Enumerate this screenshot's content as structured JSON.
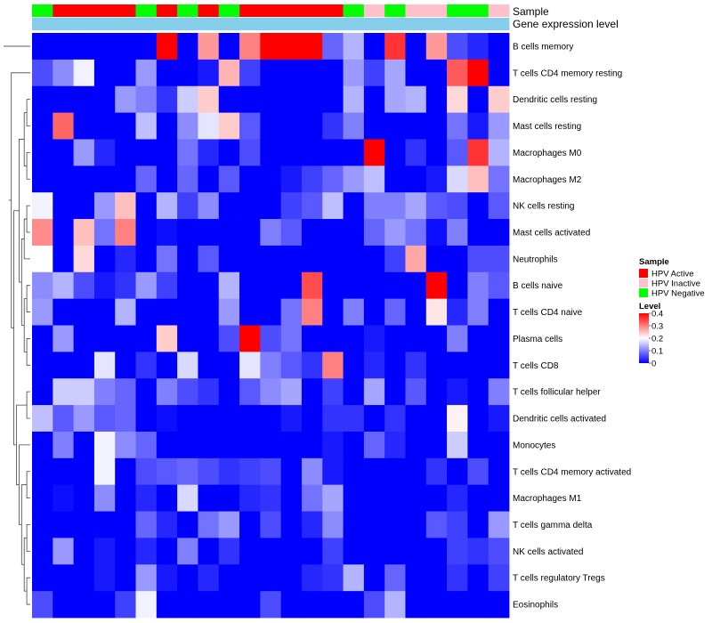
{
  "chart_data": {
    "type": "heatmap",
    "title": "",
    "annotation_labels": {
      "sample": "Sample",
      "gene": "Gene expression level"
    },
    "sample_legend": {
      "title": "Sample",
      "entries": [
        {
          "label": "HPV Active",
          "color": "#ff0000"
        },
        {
          "label": "HPV Inactive",
          "color": "#ffc0cb"
        },
        {
          "label": "HPV Negative",
          "color": "#00ff00"
        }
      ]
    },
    "level_legend": {
      "title": "Level",
      "ticks": [
        "0.4",
        "0.3",
        "0.2",
        "0.1",
        "0"
      ],
      "tick_values": [
        0.4,
        0.3,
        0.2,
        0.1,
        0
      ],
      "min": 0,
      "max": 0.4,
      "colors": [
        "#0000ff",
        "#ffffff",
        "#ff0000"
      ]
    },
    "sample_groups": [
      "Negative",
      "Active",
      "Active",
      "Active",
      "Active",
      "Negative",
      "Active",
      "Negative",
      "Active",
      "Negative",
      "Active",
      "Active",
      "Active",
      "Active",
      "Active",
      "Negative",
      "Inactive",
      "Negative",
      "Inactive",
      "Inactive",
      "Negative",
      "Negative",
      "Inactive"
    ],
    "gene_level_color": "#87ceeb",
    "rows": [
      "B cells memory",
      "T cells CD4 memory resting",
      "Dendritic cells resting",
      "Mast cells resting",
      "Macrophages M0",
      "Macrophages M2",
      "NK cells resting",
      "Mast cells activated",
      "Neutrophils",
      "B cells naive",
      "T cells CD4 naive",
      "Plasma cells",
      "T cells CD8",
      "T cells follicular helper",
      "Dendritic cells activated",
      "Monocytes",
      "T cells CD4 memory activated",
      "Macrophages M1",
      "T cells gamma delta",
      "NK cells activated",
      "T cells regulatory  Tregs",
      "Eosinophils"
    ],
    "values": [
      [
        0.0,
        0.0,
        0.0,
        0.0,
        0.0,
        0.0,
        0.4,
        0.0,
        0.28,
        0.0,
        0.3,
        0.4,
        0.4,
        0.4,
        0.08,
        0.14,
        0.0,
        0.36,
        0.0,
        0.28,
        0.06,
        0.03,
        0.0
      ],
      [
        0.06,
        0.11,
        0.19,
        0.0,
        0.0,
        0.12,
        0.0,
        0.0,
        0.02,
        0.26,
        0.05,
        0.0,
        0.0,
        0.0,
        0.0,
        0.12,
        0.05,
        0.13,
        0.0,
        0.0,
        0.33,
        0.4,
        0.0
      ],
      [
        0.0,
        0.0,
        0.0,
        0.0,
        0.12,
        0.1,
        0.04,
        0.16,
        0.24,
        0.0,
        0.0,
        0.0,
        0.0,
        0.0,
        0.0,
        0.14,
        0.0,
        0.13,
        0.14,
        0.0,
        0.23,
        0.0,
        0.24
      ],
      [
        0.0,
        0.32,
        0.0,
        0.0,
        0.0,
        0.15,
        0.0,
        0.11,
        0.18,
        0.24,
        0.07,
        0.0,
        0.0,
        0.0,
        0.04,
        0.1,
        0.0,
        0.0,
        0.0,
        0.0,
        0.09,
        0.02,
        0.12
      ],
      [
        0.0,
        0.0,
        0.12,
        0.03,
        0.0,
        0.0,
        0.0,
        0.09,
        0.03,
        0.0,
        0.06,
        0.0,
        0.0,
        0.0,
        0.0,
        0.0,
        0.4,
        0.0,
        0.04,
        0.0,
        0.07,
        0.36,
        0.14
      ],
      [
        0.0,
        0.0,
        0.0,
        0.0,
        0.0,
        0.08,
        0.0,
        0.08,
        0.0,
        0.07,
        0.0,
        0.0,
        0.02,
        0.05,
        0.08,
        0.12,
        0.15,
        0.0,
        0.0,
        0.02,
        0.17,
        0.25,
        0.09
      ],
      [
        0.19,
        0.0,
        0.0,
        0.12,
        0.25,
        0.0,
        0.14,
        0.05,
        0.11,
        0.0,
        0.0,
        0.0,
        0.05,
        0.07,
        0.15,
        0.0,
        0.1,
        0.1,
        0.13,
        0.07,
        0.06,
        0.0,
        0.07
      ],
      [
        0.29,
        0.0,
        0.25,
        0.09,
        0.3,
        0.0,
        0.01,
        0.0,
        0.0,
        0.0,
        0.0,
        0.1,
        0.07,
        0.0,
        0.0,
        0.0,
        0.08,
        0.12,
        0.09,
        0.01,
        0.1,
        0.0,
        0.0
      ],
      [
        0.2,
        0.0,
        0.23,
        0.0,
        0.03,
        0.0,
        0.09,
        0.0,
        0.07,
        0.0,
        0.0,
        0.0,
        0.0,
        0.0,
        0.0,
        0.0,
        0.0,
        0.05,
        0.27,
        0.0,
        0.0,
        0.06,
        0.06
      ],
      [
        0.11,
        0.14,
        0.06,
        0.02,
        0.04,
        0.12,
        0.05,
        0.0,
        0.0,
        0.14,
        0.0,
        0.0,
        0.0,
        0.34,
        0.0,
        0.0,
        0.0,
        0.0,
        0.0,
        0.4,
        0.0,
        0.1,
        0.07
      ],
      [
        0.12,
        0.0,
        0.0,
        0.0,
        0.14,
        0.0,
        0.0,
        0.0,
        0.0,
        0.12,
        0.0,
        0.0,
        0.09,
        0.3,
        0.0,
        0.1,
        0.0,
        0.08,
        0.0,
        0.22,
        0.03,
        0.1,
        0.0
      ],
      [
        0.0,
        0.12,
        0.0,
        0.0,
        0.0,
        0.0,
        0.24,
        0.0,
        0.0,
        0.06,
        0.4,
        0.06,
        0.09,
        0.0,
        0.0,
        0.0,
        0.02,
        0.0,
        0.0,
        0.0,
        0.1,
        0.0,
        0.0
      ],
      [
        0.0,
        0.0,
        0.0,
        0.18,
        0.0,
        0.04,
        0.0,
        0.17,
        0.0,
        0.0,
        0.18,
        0.1,
        0.07,
        0.04,
        0.3,
        0.0,
        0.03,
        0.0,
        0.04,
        0.0,
        0.0,
        0.0,
        0.0
      ],
      [
        0.0,
        0.16,
        0.16,
        0.1,
        0.08,
        0.0,
        0.1,
        0.06,
        0.04,
        0.0,
        0.07,
        0.11,
        0.13,
        0.0,
        0.05,
        0.0,
        0.13,
        0.0,
        0.07,
        0.0,
        0.02,
        0.0,
        0.1
      ],
      [
        0.15,
        0.07,
        0.12,
        0.07,
        0.08,
        0.0,
        0.01,
        0.0,
        0.0,
        0.0,
        0.0,
        0.0,
        0.02,
        0.0,
        0.04,
        0.04,
        0.0,
        0.04,
        0.0,
        0.0,
        0.21,
        0.0,
        0.02
      ],
      [
        0.0,
        0.1,
        0.0,
        0.19,
        0.11,
        0.08,
        0.0,
        0.0,
        0.0,
        0.0,
        0.0,
        0.0,
        0.0,
        0.0,
        0.02,
        0.0,
        0.08,
        0.03,
        0.0,
        0.0,
        0.16,
        0.0,
        0.0
      ],
      [
        0.0,
        0.0,
        0.0,
        0.19,
        0.0,
        0.06,
        0.07,
        0.08,
        0.06,
        0.04,
        0.05,
        0.06,
        0.0,
        0.11,
        0.02,
        0.0,
        0.0,
        0.0,
        0.0,
        0.04,
        0.0,
        0.06,
        0.0
      ],
      [
        0.0,
        0.01,
        0.0,
        0.11,
        0.0,
        0.03,
        0.0,
        0.17,
        0.0,
        0.0,
        0.03,
        0.04,
        0.0,
        0.09,
        0.13,
        0.0,
        0.0,
        0.0,
        0.0,
        0.0,
        0.03,
        0.0,
        0.0
      ],
      [
        0.0,
        0.0,
        0.0,
        0.0,
        0.0,
        0.08,
        0.03,
        0.0,
        0.09,
        0.12,
        0.0,
        0.06,
        0.0,
        0.03,
        0.11,
        0.0,
        0.0,
        0.0,
        0.0,
        0.07,
        0.05,
        0.0,
        0.12
      ],
      [
        0.0,
        0.12,
        0.0,
        0.02,
        0.0,
        0.03,
        0.0,
        0.1,
        0.0,
        0.04,
        0.0,
        0.0,
        0.0,
        0.0,
        0.05,
        0.0,
        0.0,
        0.0,
        0.0,
        0.0,
        0.05,
        0.04,
        0.06
      ],
      [
        0.0,
        0.0,
        0.0,
        0.02,
        0.0,
        0.12,
        0.02,
        0.0,
        0.03,
        0.0,
        0.0,
        0.0,
        0.0,
        0.03,
        0.04,
        0.14,
        0.0,
        0.08,
        0.0,
        0.0,
        0.04,
        0.0,
        0.05
      ],
      [
        0.06,
        0.0,
        0.0,
        0.0,
        0.05,
        0.19,
        0.0,
        0.0,
        0.0,
        0.0,
        0.0,
        0.06,
        0.0,
        0.0,
        0.0,
        0.0,
        0.06,
        0.14,
        0.0,
        0.0,
        0.0,
        0.0,
        0.0
      ]
    ]
  }
}
